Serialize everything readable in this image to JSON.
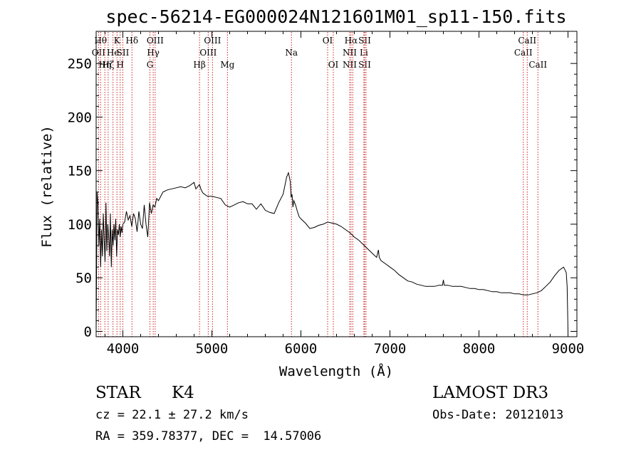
{
  "chart_data": {
    "type": "line",
    "title": "spec-56214-EG000024N121601M01_sp11-150.fits",
    "xlabel": "Wavelength (Å)",
    "ylabel": "Flux (relative)",
    "xlim": [
      3700,
      9100
    ],
    "ylim": [
      -5,
      280
    ],
    "xticks": [
      4000,
      5000,
      6000,
      7000,
      8000,
      9000
    ],
    "yticks": [
      0,
      50,
      100,
      150,
      200,
      250
    ],
    "series": [
      {
        "name": "spectrum",
        "x": [
          3700,
          3710,
          3720,
          3730,
          3740,
          3750,
          3760,
          3770,
          3780,
          3790,
          3800,
          3810,
          3820,
          3830,
          3840,
          3850,
          3860,
          3870,
          3880,
          3890,
          3900,
          3910,
          3920,
          3930,
          3940,
          3950,
          3960,
          3970,
          3980,
          3990,
          4000,
          4020,
          4040,
          4060,
          4080,
          4100,
          4120,
          4140,
          4160,
          4180,
          4200,
          4220,
          4240,
          4260,
          4280,
          4300,
          4320,
          4340,
          4360,
          4380,
          4400,
          4450,
          4500,
          4550,
          4600,
          4650,
          4700,
          4750,
          4800,
          4820,
          4840,
          4860,
          4880,
          4900,
          4950,
          5000,
          5050,
          5100,
          5150,
          5200,
          5250,
          5300,
          5350,
          5400,
          5450,
          5500,
          5550,
          5600,
          5650,
          5700,
          5750,
          5800,
          5840,
          5860,
          5880,
          5890,
          5900,
          5910,
          5920,
          5940,
          5960,
          5980,
          6000,
          6050,
          6100,
          6150,
          6200,
          6250,
          6300,
          6350,
          6400,
          6450,
          6500,
          6550,
          6600,
          6650,
          6700,
          6750,
          6800,
          6850,
          6870,
          6880,
          6900,
          6950,
          7000,
          7050,
          7100,
          7150,
          7200,
          7250,
          7300,
          7350,
          7400,
          7450,
          7500,
          7550,
          7590,
          7600,
          7610,
          7650,
          7700,
          7750,
          7800,
          7850,
          7900,
          7950,
          8000,
          8050,
          8100,
          8150,
          8200,
          8250,
          8300,
          8350,
          8400,
          8450,
          8500,
          8550,
          8600,
          8650,
          8700,
          8750,
          8800,
          8850,
          8900,
          8950,
          8980,
          8990,
          9000
        ],
        "y": [
          0,
          130,
          120,
          80,
          105,
          60,
          95,
          70,
          110,
          85,
          65,
          120,
          75,
          100,
          90,
          70,
          110,
          60,
          95,
          80,
          100,
          85,
          105,
          70,
          95,
          90,
          100,
          88,
          98,
          92,
          100,
          102,
          112,
          104,
          108,
          98,
          110,
          105,
          93,
          112,
          100,
          96,
          118,
          100,
          88,
          120,
          110,
          118,
          116,
          124,
          122,
          130,
          132,
          133,
          134,
          135,
          134,
          136,
          139,
          133,
          135,
          137,
          132,
          129,
          126,
          126,
          125,
          124,
          118,
          116,
          118,
          120,
          121,
          119,
          119,
          114,
          119,
          113,
          111,
          110,
          120,
          128,
          144,
          148,
          140,
          125,
          128,
          116,
          122,
          118,
          112,
          107,
          105,
          101,
          96,
          97,
          99,
          100,
          102,
          101,
          100,
          98,
          95,
          92,
          88,
          85,
          81,
          77,
          73,
          69,
          76,
          69,
          66,
          63,
          60,
          57,
          53,
          50,
          47,
          46,
          44,
          43,
          42,
          42,
          42,
          43,
          43,
          48,
          43,
          43,
          42,
          42,
          42,
          41,
          40,
          40,
          39,
          39,
          38,
          37,
          37,
          36,
          36,
          36,
          35,
          35,
          34,
          34,
          35,
          36,
          38,
          42,
          46,
          52,
          57,
          60,
          55,
          42,
          0
        ]
      }
    ],
    "line_markers": [
      {
        "wl": 3727,
        "labels": [
          {
            "t": "OII",
            "row": 2
          }
        ]
      },
      {
        "wl": 3750,
        "labels": [
          {
            "t": "Hθ",
            "row": 1
          }
        ]
      },
      {
        "wl": 3798,
        "labels": [
          {
            "t": "Hη",
            "row": 3
          }
        ]
      },
      {
        "wl": 3835,
        "labels": [
          {
            "t": "Hζ",
            "row": 3
          }
        ]
      },
      {
        "wl": 3889,
        "labels": [
          {
            "t": "He",
            "row": 2
          }
        ]
      },
      {
        "wl": 3934,
        "labels": [
          {
            "t": "K",
            "row": 1
          }
        ]
      },
      {
        "wl": 3970,
        "labels": [
          {
            "t": "H",
            "row": 3
          }
        ]
      },
      {
        "wl": 4000,
        "labels": [
          {
            "t": "SII",
            "row": 2
          }
        ]
      },
      {
        "wl": 4102,
        "labels": [
          {
            "t": "Hδ",
            "row": 1
          }
        ]
      },
      {
        "wl": 4304,
        "labels": [
          {
            "t": "G",
            "row": 3
          }
        ]
      },
      {
        "wl": 4341,
        "labels": [
          {
            "t": "Hγ",
            "row": 2
          }
        ]
      },
      {
        "wl": 4363,
        "labels": [
          {
            "t": "OIII",
            "row": 1
          }
        ]
      },
      {
        "wl": 4861,
        "labels": [
          {
            "t": "Hβ",
            "row": 3
          }
        ]
      },
      {
        "wl": 4959,
        "labels": [
          {
            "t": "OIII",
            "row": 2
          }
        ]
      },
      {
        "wl": 5007,
        "labels": [
          {
            "t": "OIII",
            "row": 1
          }
        ]
      },
      {
        "wl": 5175,
        "labels": [
          {
            "t": "Mg",
            "row": 3
          }
        ]
      },
      {
        "wl": 5894,
        "labels": [
          {
            "t": "Na",
            "row": 2
          }
        ]
      },
      {
        "wl": 6300,
        "labels": [
          {
            "t": "OI",
            "row": 1
          }
        ]
      },
      {
        "wl": 6364,
        "labels": [
          {
            "t": "OI",
            "row": 3
          }
        ]
      },
      {
        "wl": 6548,
        "labels": [
          {
            "t": "NII",
            "row": 2
          },
          {
            "t": "NII",
            "row": 3
          }
        ]
      },
      {
        "wl": 6563,
        "labels": [
          {
            "t": "Hα",
            "row": 1
          }
        ]
      },
      {
        "wl": 6583,
        "labels": []
      },
      {
        "wl": 6707,
        "labels": [
          {
            "t": "Li",
            "row": 2
          }
        ]
      },
      {
        "wl": 6716,
        "labels": [
          {
            "t": "SII",
            "row": 1
          },
          {
            "t": "SII",
            "row": 3
          }
        ]
      },
      {
        "wl": 6731,
        "labels": []
      },
      {
        "wl": 8498,
        "labels": [
          {
            "t": "CaII",
            "row": 2
          }
        ]
      },
      {
        "wl": 8542,
        "labels": [
          {
            "t": "CaII",
            "row": 1
          }
        ]
      },
      {
        "wl": 8662,
        "labels": [
          {
            "t": "CaII",
            "row": 3
          }
        ]
      }
    ]
  },
  "info": {
    "object_class": "STAR",
    "subclass": "K4",
    "survey": "LAMOST DR3",
    "redshift": "cz = 22.1 ± 27.2 km/s",
    "obs_date": "Obs-Date: 20121013",
    "coords": "RA = 359.78377, DEC =  14.57006"
  }
}
